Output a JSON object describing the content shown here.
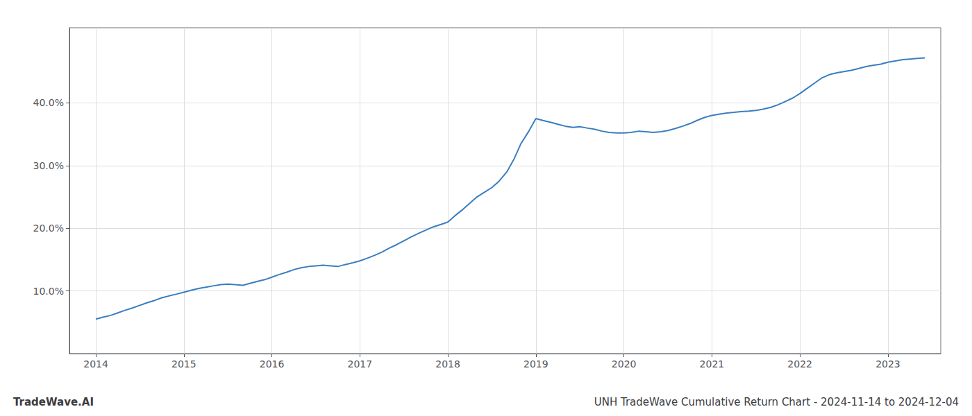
{
  "chart_data": {
    "type": "line",
    "title": "UNH TradeWave Cumulative Return Chart - 2024-11-14 to 2024-12-04",
    "annotations": [
      "TradeWave.AI"
    ],
    "x": [
      2014.0,
      2014.08,
      2014.17,
      2014.25,
      2014.33,
      2014.42,
      2014.5,
      2014.58,
      2014.67,
      2014.75,
      2014.83,
      2014.92,
      2015.0,
      2015.08,
      2015.17,
      2015.25,
      2015.33,
      2015.42,
      2015.5,
      2015.58,
      2015.67,
      2015.75,
      2015.83,
      2015.92,
      2016.0,
      2016.08,
      2016.17,
      2016.25,
      2016.33,
      2016.42,
      2016.5,
      2016.58,
      2016.67,
      2016.75,
      2016.83,
      2016.92,
      2017.0,
      2017.08,
      2017.17,
      2017.25,
      2017.33,
      2017.42,
      2017.5,
      2017.58,
      2017.67,
      2017.75,
      2017.83,
      2017.92,
      2018.0,
      2018.08,
      2018.17,
      2018.25,
      2018.33,
      2018.42,
      2018.5,
      2018.58,
      2018.67,
      2018.75,
      2018.83,
      2018.92,
      2019.0,
      2019.08,
      2019.17,
      2019.25,
      2019.33,
      2019.42,
      2019.5,
      2019.58,
      2019.67,
      2019.75,
      2019.83,
      2019.92,
      2020.0,
      2020.08,
      2020.17,
      2020.25,
      2020.33,
      2020.42,
      2020.5,
      2020.58,
      2020.67,
      2020.75,
      2020.83,
      2020.92,
      2021.0,
      2021.08,
      2021.17,
      2021.25,
      2021.33,
      2021.42,
      2021.5,
      2021.58,
      2021.67,
      2021.75,
      2021.83,
      2021.92,
      2022.0,
      2022.08,
      2022.17,
      2022.25,
      2022.33,
      2022.42,
      2022.5,
      2022.58,
      2022.67,
      2022.75,
      2022.83,
      2022.92,
      2023.0,
      2023.08,
      2023.17,
      2023.25,
      2023.33,
      2023.42
    ],
    "values": [
      5.5,
      5.8,
      6.1,
      6.5,
      6.9,
      7.3,
      7.7,
      8.1,
      8.5,
      8.9,
      9.2,
      9.5,
      9.8,
      10.1,
      10.4,
      10.6,
      10.8,
      11.0,
      11.1,
      11.0,
      10.9,
      11.2,
      11.5,
      11.8,
      12.2,
      12.6,
      13.0,
      13.4,
      13.7,
      13.9,
      14.0,
      14.1,
      14.0,
      13.9,
      14.2,
      14.5,
      14.8,
      15.2,
      15.7,
      16.2,
      16.8,
      17.4,
      18.0,
      18.6,
      19.2,
      19.7,
      20.2,
      20.6,
      21.0,
      22.0,
      23.0,
      24.0,
      25.0,
      25.8,
      26.5,
      27.5,
      29.0,
      31.0,
      33.5,
      35.5,
      37.5,
      37.2,
      36.9,
      36.6,
      36.3,
      36.1,
      36.2,
      36.0,
      35.8,
      35.5,
      35.3,
      35.2,
      35.2,
      35.3,
      35.5,
      35.4,
      35.3,
      35.4,
      35.6,
      35.9,
      36.3,
      36.7,
      37.2,
      37.7,
      38.0,
      38.2,
      38.4,
      38.5,
      38.6,
      38.7,
      38.8,
      39.0,
      39.3,
      39.7,
      40.2,
      40.8,
      41.5,
      42.3,
      43.2,
      44.0,
      44.5,
      44.8,
      45.0,
      45.2,
      45.5,
      45.8,
      46.0,
      46.2,
      46.5,
      46.7,
      46.9,
      47.0,
      47.1,
      47.2
    ],
    "color": "#3a7ebf",
    "xlim": [
      2013.7,
      2023.6
    ],
    "xticks": [
      2014,
      2015,
      2016,
      2017,
      2018,
      2019,
      2020,
      2021,
      2022,
      2023
    ],
    "ylim": [
      0,
      52
    ],
    "yticks": [
      {
        "value": 10.0,
        "label": "10.0%"
      },
      {
        "value": 20.0,
        "label": "20.0%"
      },
      {
        "value": 30.0,
        "label": "30.0%"
      },
      {
        "value": 40.0,
        "label": "40.0%"
      }
    ],
    "grid": true
  }
}
